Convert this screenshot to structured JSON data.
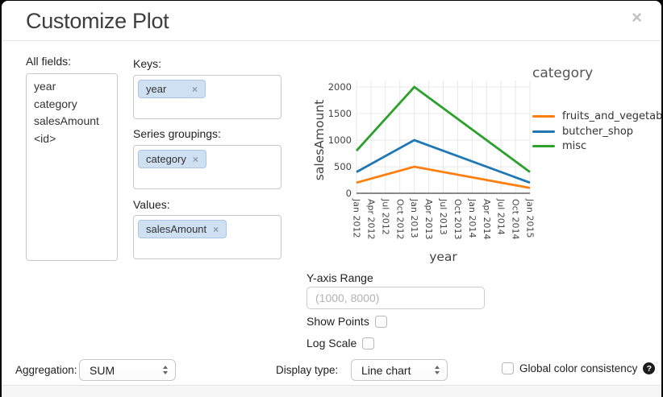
{
  "dialog": {
    "title": "Customize Plot",
    "close_glyph": "×"
  },
  "fields_panel": {
    "label": "All fields:",
    "items": [
      "year",
      "category",
      "salesAmount",
      "<id>"
    ]
  },
  "mapping": {
    "remove_glyph": "×",
    "keys": {
      "label": "Keys:",
      "tags": [
        "year"
      ]
    },
    "series_groupings": {
      "label": "Series groupings:",
      "tags": [
        "category"
      ]
    },
    "values": {
      "label": "Values:",
      "tags": [
        "salesAmount"
      ]
    }
  },
  "chart_data": {
    "type": "line",
    "title": "",
    "xlabel": "year",
    "ylabel": "salesAmount",
    "legend_title": "category",
    "legend_position": "right",
    "grid": true,
    "x_tick_labels": [
      "Jan 2012",
      "Apr 2012",
      "Jul 2012",
      "Oct 2012",
      "Jan 2013",
      "Apr 2013",
      "Jul 2013",
      "Oct 2013",
      "Jan 2014",
      "Apr 2014",
      "Jul 2014",
      "Oct 2014",
      "Jan 2015"
    ],
    "y_ticks": [
      0,
      500,
      1000,
      1500,
      2000
    ],
    "ylim": [
      0,
      2060
    ],
    "series": [
      {
        "name": "fruits_and_vegetables",
        "color": "#ff7f0e",
        "points": [
          [
            "Jan 2012",
            200
          ],
          [
            "Jan 2013",
            500
          ],
          [
            "Jan 2015",
            100
          ]
        ]
      },
      {
        "name": "butcher_shop",
        "color": "#1f77b4",
        "points": [
          [
            "Jan 2012",
            400
          ],
          [
            "Jan 2013",
            1000
          ],
          [
            "Jan 2015",
            200
          ]
        ]
      },
      {
        "name": "misc",
        "color": "#2ca02c",
        "points": [
          [
            "Jan 2012",
            800
          ],
          [
            "Jan 2013",
            2000
          ],
          [
            "Jan 2015",
            400
          ]
        ]
      }
    ]
  },
  "options": {
    "y_axis_range": {
      "label": "Y-axis Range",
      "placeholder": "(1000, 8000)",
      "value": ""
    },
    "show_points": {
      "label": "Show Points",
      "checked": false
    },
    "log_scale": {
      "label": "Log Scale",
      "checked": false
    }
  },
  "footer": {
    "aggregation": {
      "label": "Aggregation:",
      "selected": "SUM"
    },
    "display_type": {
      "label": "Display type:",
      "selected": "Line chart"
    },
    "global_color": {
      "label": "Global color consistency",
      "checked": false,
      "help_glyph": "?"
    }
  }
}
